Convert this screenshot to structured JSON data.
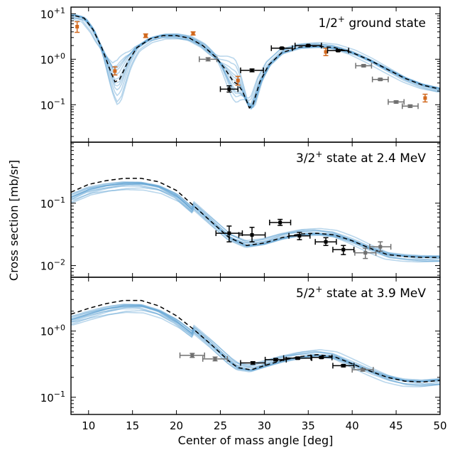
{
  "chart_data": {
    "type": "line",
    "xlabel": "Center of mass angle [deg]",
    "ylabel": "Cross section [mb/sr]",
    "xlim": [
      8,
      50
    ],
    "x_ticks": [
      10,
      15,
      20,
      25,
      30,
      35,
      40,
      45,
      50
    ],
    "x_tick_labels": [
      "10",
      "15",
      "20",
      "25",
      "30",
      "35",
      "40",
      "45",
      "50"
    ],
    "colors": {
      "ensemble": "#5b9fd1",
      "data_black": "#000000",
      "data_gray": "#707070",
      "data_orange": "#d2691e",
      "best_fit": "#000000"
    },
    "panels": [
      {
        "label_pre": "1/2",
        "label_sup": "+",
        "label_post": " ground state",
        "yscale": "log",
        "ylim": [
          0.015,
          14
        ],
        "y_ticks": [
          {
            "value": 10,
            "base": "10",
            "exp": "+1"
          },
          {
            "value": 1,
            "base": "10",
            "exp": "+0"
          },
          {
            "value": 0.1,
            "base": "10",
            "exp": "−1"
          }
        ],
        "dashed": [
          [
            8.5,
            9.0
          ],
          [
            9.5,
            8.0
          ],
          [
            10.5,
            4.5
          ],
          [
            11.5,
            1.8
          ],
          [
            12.5,
            0.55
          ],
          [
            13,
            0.32
          ],
          [
            13.5,
            0.35
          ],
          [
            14.5,
            0.9
          ],
          [
            15.5,
            1.8
          ],
          [
            17,
            2.8
          ],
          [
            18.5,
            3.3
          ],
          [
            20,
            3.3
          ],
          [
            21.5,
            2.9
          ],
          [
            23,
            2.0
          ],
          [
            24.5,
            1.1
          ],
          [
            25.5,
            0.62
          ],
          [
            26.5,
            0.32
          ],
          [
            27,
            0.28
          ],
          [
            27.5,
            0.2
          ],
          [
            28,
            0.12
          ],
          [
            28.3,
            0.085
          ],
          [
            28.7,
            0.1
          ],
          [
            29.5,
            0.32
          ],
          [
            30.5,
            0.75
          ],
          [
            32,
            1.4
          ],
          [
            34,
            1.85
          ],
          [
            36,
            1.95
          ],
          [
            38,
            1.8
          ],
          [
            40,
            1.4
          ],
          [
            42,
            0.95
          ],
          [
            44,
            0.6
          ],
          [
            46,
            0.38
          ],
          [
            48,
            0.27
          ],
          [
            50,
            0.22
          ]
        ],
        "ensemble_minima": [
          [
            13,
            0.28,
            0.9
          ],
          [
            26.5,
            0.03,
            0.25
          ]
        ],
        "points": [
          {
            "x": 8.7,
            "y": 5.2,
            "xerr": 0,
            "ylo": 3.9,
            "yhi": 6.7,
            "group": "orange"
          },
          {
            "x": 13.0,
            "y": 0.55,
            "xerr": 0,
            "ylo": 0.45,
            "yhi": 0.68,
            "group": "orange"
          },
          {
            "x": 16.5,
            "y": 3.3,
            "xerr": 0,
            "ylo": 3.0,
            "yhi": 3.6,
            "group": "orange"
          },
          {
            "x": 21.9,
            "y": 3.7,
            "xerr": 0,
            "ylo": 3.4,
            "yhi": 4.0,
            "group": "orange"
          },
          {
            "x": 27.0,
            "y": 0.34,
            "xerr": 0,
            "ylo": 0.27,
            "yhi": 0.42,
            "group": "orange"
          },
          {
            "x": 37.0,
            "y": 1.45,
            "xerr": 0,
            "ylo": 1.2,
            "yhi": 1.75,
            "group": "orange"
          },
          {
            "x": 48.3,
            "y": 0.14,
            "xerr": 0,
            "ylo": 0.115,
            "yhi": 0.17,
            "group": "orange"
          },
          {
            "x": 23.6,
            "y": 1.0,
            "xerr": 1.0,
            "ylo": 0.92,
            "yhi": 1.08,
            "group": "gray"
          },
          {
            "x": 26.0,
            "y": 0.22,
            "xerr": 1.0,
            "ylo": 0.19,
            "yhi": 0.26,
            "group": "black"
          },
          {
            "x": 28.6,
            "y": 0.57,
            "xerr": 1.3,
            "ylo": 0.53,
            "yhi": 0.61,
            "group": "black"
          },
          {
            "x": 32.0,
            "y": 1.75,
            "xerr": 1.2,
            "ylo": 1.68,
            "yhi": 1.82,
            "group": "black"
          },
          {
            "x": 35.0,
            "y": 2.0,
            "xerr": 1.5,
            "ylo": 1.93,
            "yhi": 2.07,
            "group": "black"
          },
          {
            "x": 38.4,
            "y": 1.55,
            "xerr": 1.2,
            "ylo": 1.48,
            "yhi": 1.62,
            "group": "black"
          },
          {
            "x": 41.3,
            "y": 0.72,
            "xerr": 0.9,
            "ylo": 0.68,
            "yhi": 0.76,
            "group": "gray"
          },
          {
            "x": 43.2,
            "y": 0.36,
            "xerr": 0.9,
            "ylo": 0.34,
            "yhi": 0.38,
            "group": "gray"
          },
          {
            "x": 45.0,
            "y": 0.115,
            "xerr": 0.9,
            "ylo": 0.108,
            "yhi": 0.122,
            "group": "gray"
          },
          {
            "x": 46.6,
            "y": 0.093,
            "xerr": 0.9,
            "ylo": 0.087,
            "yhi": 0.099,
            "group": "gray"
          }
        ]
      },
      {
        "label_pre": "3/2",
        "label_sup": "+",
        "label_post": " state at 2.4 MeV",
        "yscale": "log",
        "ylim": [
          0.0065,
          0.95
        ],
        "y_ticks": [
          {
            "value": 0.1,
            "base": "10",
            "exp": "−1"
          },
          {
            "value": 0.01,
            "base": "10",
            "exp": "−2"
          }
        ],
        "dashed": [
          [
            8,
            0.15
          ],
          [
            10,
            0.2
          ],
          [
            12,
            0.23
          ],
          [
            14,
            0.25
          ],
          [
            16,
            0.25
          ],
          [
            18,
            0.22
          ],
          [
            20,
            0.16
          ],
          [
            22,
            0.09
          ],
          [
            24,
            0.05
          ],
          [
            26,
            0.028
          ],
          [
            28,
            0.021
          ],
          [
            30,
            0.023
          ],
          [
            32,
            0.028
          ],
          [
            34,
            0.032
          ],
          [
            36,
            0.033
          ],
          [
            38,
            0.031
          ],
          [
            40,
            0.025
          ],
          [
            42,
            0.019
          ],
          [
            44,
            0.015
          ],
          [
            46,
            0.014
          ],
          [
            48,
            0.0135
          ],
          [
            50,
            0.0135
          ]
        ],
        "points": [
          {
            "x": 26.0,
            "y": 0.033,
            "xerr": 1.5,
            "ylo": 0.024,
            "yhi": 0.043,
            "group": "black"
          },
          {
            "x": 28.6,
            "y": 0.031,
            "xerr": 1.5,
            "ylo": 0.024,
            "yhi": 0.041,
            "group": "black"
          },
          {
            "x": 31.8,
            "y": 0.049,
            "xerr": 1.2,
            "ylo": 0.044,
            "yhi": 0.055,
            "group": "black"
          },
          {
            "x": 34.0,
            "y": 0.03,
            "xerr": 1.2,
            "ylo": 0.026,
            "yhi": 0.034,
            "group": "black"
          },
          {
            "x": 37.0,
            "y": 0.024,
            "xerr": 1.2,
            "ylo": 0.021,
            "yhi": 0.028,
            "group": "black"
          },
          {
            "x": 39.0,
            "y": 0.018,
            "xerr": 1.2,
            "ylo": 0.015,
            "yhi": 0.021,
            "group": "black"
          },
          {
            "x": 41.5,
            "y": 0.016,
            "xerr": 1.2,
            "ylo": 0.013,
            "yhi": 0.019,
            "group": "gray"
          },
          {
            "x": 43.2,
            "y": 0.02,
            "xerr": 1.2,
            "ylo": 0.017,
            "yhi": 0.024,
            "group": "gray"
          }
        ]
      },
      {
        "label_pre": "5/2",
        "label_sup": "+",
        "label_post": " state at 3.9 MeV",
        "yscale": "log",
        "ylim": [
          0.055,
          6.5
        ],
        "y_ticks": [
          {
            "value": 1,
            "base": "10",
            "exp": "+0"
          },
          {
            "value": 0.1,
            "base": "10",
            "exp": "−1"
          }
        ],
        "dashed": [
          [
            8,
            1.8
          ],
          [
            10,
            2.2
          ],
          [
            12,
            2.6
          ],
          [
            14,
            2.9
          ],
          [
            16,
            2.9
          ],
          [
            18,
            2.4
          ],
          [
            20,
            1.7
          ],
          [
            22,
            1.05
          ],
          [
            24,
            0.62
          ],
          [
            26,
            0.35
          ],
          [
            27,
            0.28
          ],
          [
            28.5,
            0.26
          ],
          [
            30,
            0.3
          ],
          [
            32,
            0.36
          ],
          [
            34,
            0.41
          ],
          [
            36,
            0.44
          ],
          [
            38,
            0.41
          ],
          [
            40,
            0.32
          ],
          [
            42,
            0.25
          ],
          [
            44,
            0.2
          ],
          [
            46,
            0.175
          ],
          [
            48,
            0.17
          ],
          [
            50,
            0.18
          ]
        ],
        "points": [
          {
            "x": 21.8,
            "y": 0.43,
            "xerr": 1.4,
            "ylo": 0.4,
            "yhi": 0.46,
            "group": "gray"
          },
          {
            "x": 24.4,
            "y": 0.38,
            "xerr": 1.4,
            "ylo": 0.355,
            "yhi": 0.405,
            "group": "gray"
          },
          {
            "x": 28.7,
            "y": 0.33,
            "xerr": 1.4,
            "ylo": 0.315,
            "yhi": 0.345,
            "group": "black"
          },
          {
            "x": 31.3,
            "y": 0.37,
            "xerr": 1.2,
            "ylo": 0.355,
            "yhi": 0.385,
            "group": "black"
          },
          {
            "x": 33.8,
            "y": 0.39,
            "xerr": 1.6,
            "ylo": 0.375,
            "yhi": 0.405,
            "group": "black"
          },
          {
            "x": 36.5,
            "y": 0.4,
            "xerr": 1.2,
            "ylo": 0.385,
            "yhi": 0.415,
            "group": "black"
          },
          {
            "x": 39.0,
            "y": 0.3,
            "xerr": 1.2,
            "ylo": 0.288,
            "yhi": 0.312,
            "group": "black"
          },
          {
            "x": 41.2,
            "y": 0.26,
            "xerr": 1.2,
            "ylo": 0.248,
            "yhi": 0.272,
            "group": "gray"
          }
        ]
      }
    ]
  }
}
